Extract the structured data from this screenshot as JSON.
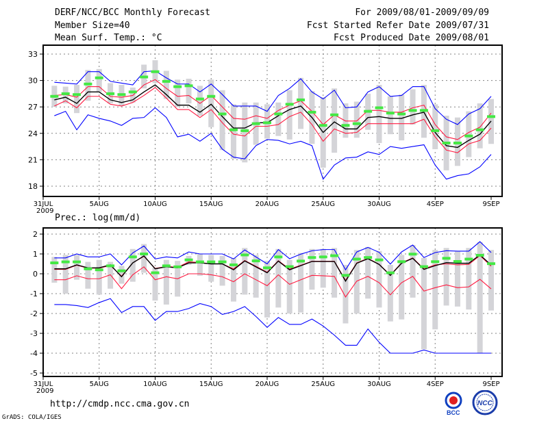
{
  "header": {
    "title": "DERF/NCC/BCC Monthly Forecast",
    "member_size": "Member Size=40",
    "variable1": "Mean Surf. Temp.: °C",
    "period": "For 2009/08/01-2009/09/09",
    "start_date": "Fcst Started Refer Date 2009/07/31",
    "produced_date": "Fcst Produced Date 2009/08/01"
  },
  "footer": {
    "url": "http://cmdp.ncc.cma.gov.cn",
    "credit": "GrADS: COLA/IGES",
    "logo_bcc": "BCC",
    "logo_ncc": "NCC"
  },
  "colors": {
    "max_min": "#0000ff",
    "spread": "#ff1a40",
    "mean": "#000000",
    "observed": "#44e844",
    "box": "#d4d4d8",
    "grid": "#808080"
  },
  "chart_data": [
    {
      "type": "line",
      "title": "Mean Surf. Temp.: °C",
      "xtick_labels": [
        "31JUL\n2009",
        "5AUG",
        "10AUG",
        "15AUG",
        "20AUG",
        "25AUG",
        "30AUG",
        "4SEP",
        "9SEP"
      ],
      "xtick_day_index": [
        0,
        5,
        10,
        15,
        20,
        25,
        30,
        35,
        40
      ],
      "ylim": [
        18,
        33
      ],
      "yticks": [
        18,
        21,
        24,
        27,
        30,
        33
      ],
      "grid": true,
      "x_days": "2009-08-01 to 2009-09-09 (40 days)",
      "series": [
        {
          "name": "max",
          "color": "blue",
          "values": [
            29.8,
            29.7,
            29.6,
            31.0,
            31.0,
            29.9,
            29.7,
            29.5,
            31.0,
            31.1,
            30.3,
            29.6,
            29.6,
            28.7,
            29.6,
            28.4,
            27.1,
            27.1,
            27.1,
            26.5,
            28.3,
            29.1,
            30.2,
            28.7,
            27.9,
            28.9,
            26.9,
            27.0,
            28.7,
            29.3,
            28.2,
            28.3,
            29.3,
            29.3,
            26.8,
            25.6,
            25.0,
            26.2,
            26.8,
            28.2
          ]
        },
        {
          "name": "upper",
          "color": "red",
          "values": [
            28.3,
            28.4,
            28.1,
            29.3,
            29.3,
            28.2,
            28.1,
            28.3,
            29.5,
            30.1,
            29.1,
            28.2,
            28.3,
            27.4,
            28.3,
            27.0,
            25.7,
            25.6,
            26.0,
            25.7,
            26.6,
            27.2,
            27.7,
            26.5,
            25.0,
            26.1,
            25.4,
            25.4,
            26.6,
            26.6,
            26.4,
            26.4,
            26.9,
            27.2,
            25.0,
            23.6,
            23.3,
            24.1,
            24.7,
            26.3
          ]
        },
        {
          "name": "mean",
          "color": "black",
          "values": [
            27.8,
            28.1,
            27.4,
            28.7,
            28.7,
            27.8,
            27.5,
            27.8,
            28.7,
            29.5,
            28.4,
            27.2,
            27.2,
            26.4,
            27.3,
            25.9,
            24.6,
            24.6,
            25.2,
            25.2,
            26.0,
            26.7,
            27.1,
            25.8,
            24.1,
            25.3,
            24.5,
            24.5,
            25.8,
            25.9,
            25.7,
            25.7,
            26.1,
            26.4,
            24.1,
            22.6,
            22.4,
            23.2,
            23.9,
            25.4
          ]
        },
        {
          "name": "lower",
          "color": "red",
          "values": [
            27.1,
            27.7,
            26.9,
            28.2,
            28.2,
            27.3,
            27.1,
            27.5,
            28.3,
            29.2,
            28.0,
            26.7,
            26.7,
            25.8,
            26.7,
            25.2,
            23.9,
            23.7,
            24.8,
            24.8,
            25.0,
            25.9,
            26.4,
            25.0,
            23.1,
            24.5,
            24.0,
            24.1,
            25.1,
            25.1,
            25.1,
            25.1,
            25.1,
            25.6,
            23.6,
            22.1,
            21.8,
            22.8,
            23.2,
            24.6
          ]
        },
        {
          "name": "min",
          "color": "blue",
          "values": [
            26.0,
            26.5,
            24.4,
            26.1,
            25.7,
            25.4,
            24.9,
            25.7,
            25.8,
            26.9,
            25.8,
            23.6,
            23.9,
            23.1,
            24.0,
            22.2,
            21.3,
            21.1,
            22.6,
            23.3,
            23.2,
            22.8,
            23.1,
            22.6,
            18.8,
            20.4,
            21.2,
            21.3,
            21.9,
            21.6,
            22.5,
            22.3,
            22.5,
            22.7,
            20.4,
            18.8,
            19.2,
            19.4,
            20.2,
            21.6
          ]
        },
        {
          "name": "observed",
          "color": "green",
          "values": [
            28.2,
            28.5,
            28.4,
            29.6,
            30.3,
            28.5,
            28.4,
            28.7,
            30.4,
            31.0,
            29.9,
            29.3,
            29.4,
            27.9,
            28.2,
            26.2,
            24.4,
            24.3,
            25.1,
            25.2,
            26.2,
            27.3,
            27.8,
            26.4,
            24.9,
            26.1,
            24.9,
            25.1,
            26.5,
            26.9,
            26.3,
            26.2,
            26.6,
            26.6,
            24.3,
            22.9,
            22.9,
            23.7,
            24.4,
            25.9
          ]
        }
      ],
      "box_high": [
        29.4,
        29.3,
        29.5,
        31.2,
        31.3,
        29.7,
        29.5,
        29.2,
        31.8,
        32.3,
        31.1,
        30.1,
        30.2,
        29.4,
        30.1,
        28.9,
        27.3,
        27.5,
        27.5,
        27.3,
        27.5,
        28.9,
        30.3,
        28.8,
        28.1,
        29.1,
        27.4,
        27.6,
        28.5,
        29.5,
        28.2,
        28.4,
        29.0,
        29.5,
        27.3,
        26.0,
        25.8,
        26.5,
        27.4,
        27.9
      ],
      "box_low": [
        27.0,
        27.4,
        26.3,
        27.7,
        28.7,
        27.4,
        27.1,
        27.5,
        29.1,
        29.7,
        27.9,
        27.0,
        27.4,
        26.0,
        24.7,
        22.1,
        21.1,
        20.7,
        22.7,
        23.4,
        23.7,
        23.3,
        24.5,
        22.8,
        20.1,
        21.8,
        23.5,
        23.5,
        24.4,
        22.9,
        23.9,
        23.2,
        25.0,
        23.5,
        22.2,
        19.8,
        20.3,
        21.3,
        22.3,
        22.8
      ]
    },
    {
      "type": "line",
      "title": "Prec.: log(mm/d)",
      "xtick_labels": [
        "31JUL\n2009",
        "5AUG",
        "10AUG",
        "15AUG",
        "20AUG",
        "25AUG",
        "30AUG",
        "4SEP",
        "9SEP"
      ],
      "xtick_day_index": [
        0,
        5,
        10,
        15,
        20,
        25,
        30,
        35,
        40
      ],
      "ylim": [
        -5,
        2
      ],
      "yticks": [
        -5,
        -4,
        -3,
        -2,
        -1,
        0,
        1,
        2
      ],
      "grid": true,
      "series": [
        {
          "name": "max",
          "color": "blue",
          "values": [
            0.8,
            0.8,
            1.0,
            0.85,
            0.85,
            1.0,
            0.45,
            1.05,
            1.4,
            0.75,
            0.85,
            0.8,
            1.1,
            1.0,
            1.0,
            1.0,
            0.75,
            1.2,
            0.85,
            0.5,
            1.22,
            0.76,
            0.99,
            1.16,
            1.22,
            1.22,
            0.2,
            1.1,
            1.33,
            1.08,
            0.49,
            1.1,
            1.45,
            0.82,
            1.07,
            1.16,
            1.14,
            1.14,
            1.62,
            1.07
          ]
        },
        {
          "name": "upper",
          "color": "red",
          "values": [
            0.22,
            0.22,
            0.43,
            0.28,
            0.28,
            0.42,
            -0.12,
            0.55,
            0.88,
            0.27,
            0.37,
            0.33,
            0.6,
            0.57,
            0.5,
            0.5,
            0.25,
            0.67,
            0.38,
            0.08,
            0.66,
            0.24,
            0.43,
            0.63,
            0.63,
            0.63,
            -0.33,
            0.55,
            0.78,
            0.48,
            -0.06,
            0.55,
            0.8,
            0.25,
            0.45,
            0.5,
            0.45,
            0.47,
            0.92,
            0.38
          ]
        },
        {
          "name": "mean",
          "color": "black",
          "values": [
            0.25,
            0.25,
            0.45,
            0.3,
            0.3,
            0.45,
            -0.15,
            0.55,
            0.9,
            0.25,
            0.35,
            0.3,
            0.55,
            0.55,
            0.5,
            0.5,
            0.2,
            0.65,
            0.35,
            0.05,
            0.64,
            0.2,
            0.41,
            0.62,
            0.62,
            0.62,
            -0.37,
            0.53,
            0.76,
            0.47,
            -0.08,
            0.53,
            0.78,
            0.22,
            0.41,
            0.56,
            0.53,
            0.53,
            0.95,
            0.44
          ]
        },
        {
          "name": "lower",
          "color": "red",
          "values": [
            -0.3,
            -0.3,
            -0.1,
            -0.25,
            -0.25,
            -0.05,
            -0.75,
            -0.05,
            0.35,
            -0.3,
            -0.15,
            -0.25,
            0.0,
            0.0,
            -0.05,
            -0.15,
            -0.4,
            0.0,
            -0.3,
            -0.6,
            -0.05,
            -0.53,
            -0.3,
            -0.08,
            -0.1,
            -0.13,
            -1.17,
            -0.37,
            -0.13,
            -0.45,
            -1.06,
            -0.45,
            -0.13,
            -0.87,
            -0.7,
            -0.56,
            -0.7,
            -0.66,
            -0.28,
            -0.76
          ]
        },
        {
          "name": "min",
          "color": "blue",
          "values": [
            -1.55,
            -1.55,
            -1.6,
            -1.7,
            -1.45,
            -1.25,
            -1.95,
            -1.65,
            -1.65,
            -2.35,
            -1.9,
            -1.9,
            -1.75,
            -1.5,
            -1.65,
            -2.05,
            -1.9,
            -1.65,
            -2.15,
            -2.7,
            -2.2,
            -2.55,
            -2.55,
            -2.28,
            -2.63,
            -3.09,
            -3.6,
            -3.6,
            -2.78,
            -3.45,
            -4.0,
            -4.0,
            -4.0,
            -3.84,
            -4.0,
            -4.0,
            -4.0,
            -4.0,
            -4.0,
            -4.0
          ]
        },
        {
          "name": "observed",
          "color": "green",
          "values": [
            0.55,
            0.6,
            0.6,
            0.25,
            0.2,
            0.4,
            0.15,
            0.85,
            1.0,
            0.05,
            0.4,
            0.35,
            0.7,
            0.6,
            0.6,
            0.6,
            0.45,
            0.95,
            0.65,
            0.3,
            0.85,
            0.36,
            0.64,
            0.82,
            0.85,
            0.91,
            -0.08,
            0.74,
            0.82,
            0.7,
            0.05,
            0.61,
            0.99,
            0.36,
            0.61,
            0.78,
            0.62,
            0.74,
            0.93,
            0.51
          ]
        }
      ],
      "box_high": [
        0.85,
        0.95,
        0.95,
        0.6,
        0.7,
        0.6,
        0.4,
        1.25,
        1.5,
        0.3,
        0.7,
        0.65,
        0.9,
        1.0,
        0.95,
        0.9,
        0.8,
        1.3,
        0.95,
        0.65,
        1.25,
        0.7,
        1.05,
        1.25,
        1.25,
        1.3,
        0.45,
        1.2,
        1.35,
        1.15,
        0.45,
        0.95,
        1.45,
        0.8,
        1.2,
        1.3,
        1.15,
        1.3,
        1.6,
        1.2
      ],
      "box_low": [
        -0.45,
        -1.0,
        -0.3,
        -0.75,
        -1.05,
        -0.75,
        -0.5,
        -0.4,
        0.05,
        -1.35,
        -1.55,
        -1.15,
        0.45,
        -0.1,
        -0.4,
        -0.6,
        -1.4,
        -1.05,
        -1.2,
        -2.2,
        -1.7,
        -2.0,
        -1.95,
        -0.8,
        -0.7,
        -1.2,
        -2.5,
        -2.0,
        -1.25,
        -1.7,
        -2.4,
        -2.3,
        -1.2,
        -3.8,
        -2.8,
        -1.6,
        -1.65,
        -1.8,
        -4.0,
        -1.85
      ]
    }
  ]
}
